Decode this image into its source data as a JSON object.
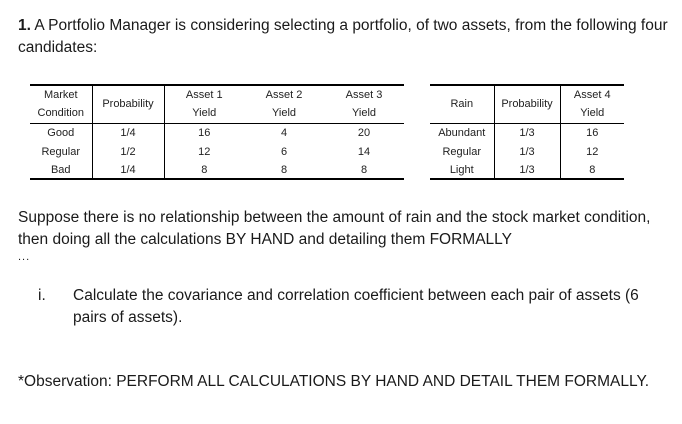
{
  "question": {
    "number": "1.",
    "text": "A Portfolio Manager is considering selecting a portfolio, of two assets, from the following four candidates:"
  },
  "table1": {
    "headers": {
      "market_condition_line1": "Market",
      "market_condition_line2": "Condition",
      "probability": "Probability",
      "asset1_line1": "Asset 1",
      "asset1_line2": "Yield",
      "asset2_line1": "Asset 2",
      "asset2_line2": "Yield",
      "asset3_line1": "Asset 3",
      "asset3_line2": "Yield"
    },
    "rows": [
      {
        "condition": "Good",
        "probability": "1/4",
        "a1": "16",
        "a2": "4",
        "a3": "20"
      },
      {
        "condition": "Regular",
        "probability": "1/2",
        "a1": "12",
        "a2": "6",
        "a3": "14"
      },
      {
        "condition": "Bad",
        "probability": "1/4",
        "a1": "8",
        "a2": "8",
        "a3": "8"
      }
    ]
  },
  "table2": {
    "headers": {
      "rain": "Rain",
      "probability": "Probability",
      "asset4_line1": "Asset 4",
      "asset4_line2": "Yield"
    },
    "rows": [
      {
        "rain": "Abundant",
        "probability": "1/3",
        "a4": "16"
      },
      {
        "rain": "Regular",
        "probability": "1/3",
        "a4": "12"
      },
      {
        "rain": "Light",
        "probability": "1/3",
        "a4": "8"
      }
    ]
  },
  "paragraph1": "Suppose there is no relationship between the amount of rain and the stock market condition, then doing all the calculations BY HAND and detailing them FORMALLY",
  "ellipsis": "...",
  "item_i": {
    "label": "i.",
    "text": "Calculate the covariance and correlation coefficient between each pair of assets (6 pairs of assets)."
  },
  "observation": "*Observation: PERFORM ALL CALCULATIONS BY HAND AND DETAIL THEM FORMALLY."
}
